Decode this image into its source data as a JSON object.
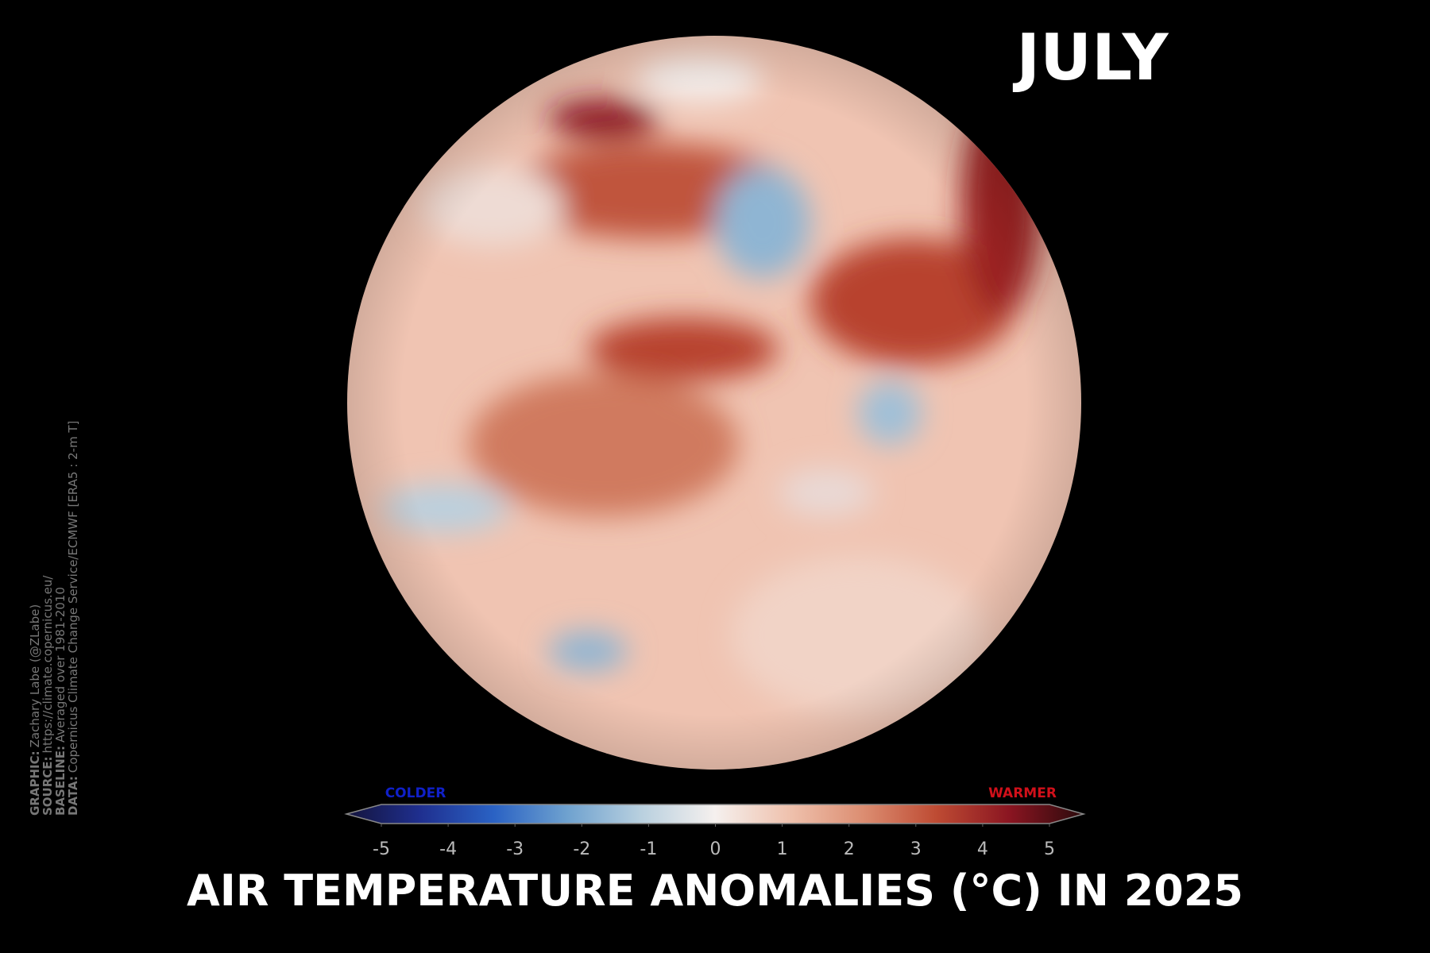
{
  "header": {
    "month": "JULY",
    "title": "AIR TEMPERATURE ANOMALIES (°C) IN 2025"
  },
  "colorbar": {
    "lim": [
      -5,
      5
    ],
    "ticks": [
      -5,
      -4,
      -3,
      -2,
      -1,
      0,
      1,
      2,
      3,
      4,
      5
    ],
    "low_label": "COLDER",
    "high_label": "WARMER"
  },
  "credits": [
    {
      "label": "GRAPHIC:",
      "text": "Zachary Labe (@ZLabe)"
    },
    {
      "label": "SOURCE:",
      "text": "https://climate.copernicus.eu/"
    },
    {
      "label": "BASELINE:",
      "text": "Averaged over 1981-2010"
    },
    {
      "label": "DATA:",
      "text": "Copernicus Climate Change Service/ECMWF [ERA5 : 2-m T]"
    }
  ]
}
